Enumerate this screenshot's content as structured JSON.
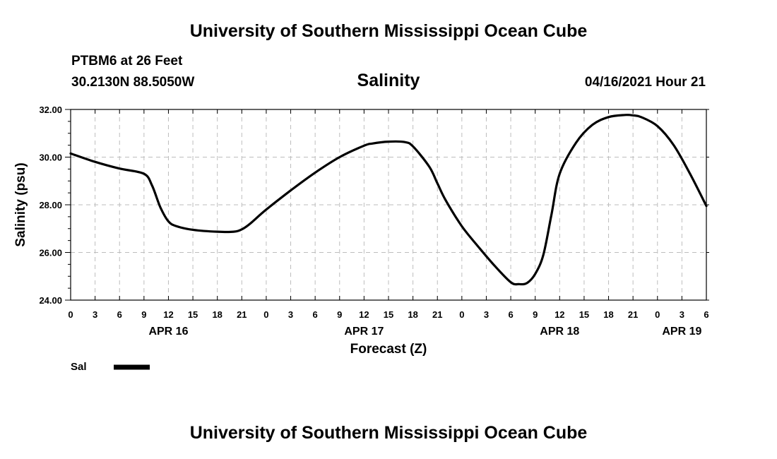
{
  "header": {
    "top_title": "University of Southern Mississippi Ocean Cube",
    "station": "PTBM6 at 26 Feet",
    "latlon": "30.2130N  88.5050W",
    "chart_title": "Salinity",
    "run_time": "04/16/2021 Hour 21",
    "bottom_title": "University of Southern Mississippi Ocean Cube"
  },
  "chart_data": {
    "type": "line",
    "title": "Salinity",
    "xlabel": "Forecast (Z)",
    "ylabel": "Salinity (psu)",
    "ylim": [
      24,
      32
    ],
    "xlim": [
      0,
      78
    ],
    "x_unit": "forecast hour",
    "grid": true,
    "y_ticks": [
      24,
      26,
      28,
      30,
      32
    ],
    "y_tick_labels": [
      "24.00",
      "26.00",
      "28.00",
      "30.00",
      "32.00"
    ],
    "x_ticks": [
      0,
      3,
      6,
      9,
      12,
      15,
      18,
      21,
      24,
      27,
      30,
      33,
      36,
      39,
      42,
      45,
      48,
      51,
      54,
      57,
      60,
      63,
      66,
      69,
      72,
      75,
      78
    ],
    "x_tick_labels": [
      "0",
      "3",
      "6",
      "9",
      "12",
      "15",
      "18",
      "21",
      "0",
      "3",
      "6",
      "9",
      "12",
      "15",
      "18",
      "21",
      "0",
      "3",
      "6",
      "9",
      "12",
      "15",
      "18",
      "21",
      "0",
      "3",
      "6"
    ],
    "date_labels": [
      {
        "label": "APR 16",
        "at": 12
      },
      {
        "label": "APR 17",
        "at": 36
      },
      {
        "label": "APR 18",
        "at": 60
      },
      {
        "label": "APR 19",
        "at": 75
      }
    ],
    "legend": [
      {
        "name": "Sal",
        "color": "#000000"
      }
    ],
    "series": [
      {
        "name": "Sal",
        "color": "#000000",
        "x": [
          0,
          3,
          6,
          9,
          10,
          11,
          12,
          13,
          15,
          18,
          20,
          21,
          22,
          24,
          27,
          30,
          33,
          36,
          37,
          39,
          41,
          42,
          44,
          45,
          46,
          48,
          50,
          52,
          54,
          55,
          56,
          57,
          58,
          59,
          60,
          62,
          64,
          66,
          68,
          69,
          70,
          72,
          74,
          76,
          78
        ],
        "values": [
          30.15,
          29.8,
          29.52,
          29.3,
          28.8,
          27.9,
          27.3,
          27.1,
          26.95,
          26.87,
          26.87,
          26.97,
          27.2,
          27.8,
          28.6,
          29.35,
          30.0,
          30.48,
          30.57,
          30.65,
          30.63,
          30.45,
          29.6,
          28.9,
          28.2,
          27.1,
          26.25,
          25.45,
          24.75,
          24.67,
          24.72,
          25.1,
          25.9,
          27.6,
          29.3,
          30.6,
          31.35,
          31.68,
          31.77,
          31.75,
          31.68,
          31.3,
          30.5,
          29.3,
          27.95
        ]
      }
    ]
  }
}
